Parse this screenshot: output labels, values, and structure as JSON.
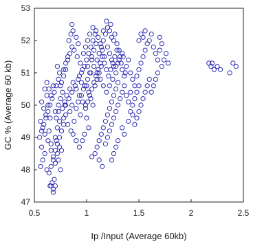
{
  "chart_data": {
    "type": "scatter",
    "title": "",
    "xlabel": "Ip /Input (Average 60kb)",
    "ylabel": "GC % (Average 60 kb)",
    "xlim": [
      0.5,
      2.5
    ],
    "ylim": [
      47,
      53
    ],
    "xticks": [
      0.5,
      1,
      1.5,
      2,
      2.5
    ],
    "xtick_labels": [
      "0.5",
      "1",
      "1.5",
      "2",
      "2.5"
    ],
    "yticks": [
      47,
      48,
      49,
      50,
      51,
      52,
      53
    ],
    "ytick_labels": [
      "47",
      "48",
      "49",
      "50",
      "51",
      "52",
      "53"
    ],
    "grid": false,
    "marker": "open-circle",
    "marker_color": "#2b2bb0",
    "series": [
      {
        "points": [
          [
            0.56,
            48.1
          ],
          [
            0.58,
            48.3
          ],
          [
            0.6,
            48.5
          ],
          [
            0.62,
            48.0
          ],
          [
            0.57,
            48.7
          ],
          [
            0.63,
            48.9
          ],
          [
            0.6,
            49.1
          ],
          [
            0.58,
            49.3
          ],
          [
            0.56,
            49.5
          ],
          [
            0.61,
            49.7
          ],
          [
            0.59,
            49.9
          ],
          [
            0.57,
            50.1
          ],
          [
            0.62,
            50.3
          ],
          [
            0.6,
            50.5
          ],
          [
            0.63,
            50.0
          ],
          [
            0.65,
            49.6
          ],
          [
            0.64,
            49.2
          ],
          [
            0.66,
            48.8
          ],
          [
            0.65,
            47.5
          ],
          [
            0.67,
            47.6
          ],
          [
            0.68,
            47.4
          ],
          [
            0.69,
            47.7
          ],
          [
            0.66,
            47.5
          ],
          [
            0.7,
            47.5
          ],
          [
            0.68,
            47.3
          ],
          [
            0.7,
            48.2
          ],
          [
            0.72,
            48.5
          ],
          [
            0.74,
            48.7
          ],
          [
            0.71,
            48.9
          ],
          [
            0.73,
            48.3
          ],
          [
            0.76,
            48.6
          ],
          [
            0.75,
            48.0
          ],
          [
            0.7,
            49.0
          ],
          [
            0.72,
            49.3
          ],
          [
            0.74,
            49.5
          ],
          [
            0.76,
            49.2
          ],
          [
            0.78,
            49.6
          ],
          [
            0.7,
            49.8
          ],
          [
            0.73,
            50.0
          ],
          [
            0.75,
            50.2
          ],
          [
            0.77,
            50.4
          ],
          [
            0.79,
            50.0
          ],
          [
            0.8,
            49.7
          ],
          [
            0.82,
            49.4
          ],
          [
            0.85,
            49.2
          ],
          [
            0.84,
            49.8
          ],
          [
            0.86,
            50.0
          ],
          [
            0.88,
            49.5
          ],
          [
            0.9,
            49.9
          ],
          [
            0.92,
            50.1
          ],
          [
            0.94,
            49.7
          ],
          [
            0.95,
            50.3
          ],
          [
            0.97,
            50.5
          ],
          [
            0.99,
            50.0
          ],
          [
            1.0,
            49.6
          ],
          [
            1.02,
            49.3
          ],
          [
            0.98,
            49.1
          ],
          [
            0.96,
            48.9
          ],
          [
            0.93,
            48.7
          ],
          [
            0.9,
            48.9
          ],
          [
            0.87,
            49.1
          ],
          [
            0.76,
            50.7
          ],
          [
            0.78,
            50.9
          ],
          [
            0.8,
            51.1
          ],
          [
            0.74,
            51.0
          ],
          [
            0.72,
            51.2
          ],
          [
            0.75,
            50.6
          ],
          [
            0.68,
            50.6
          ],
          [
            0.66,
            50.3
          ],
          [
            0.64,
            50.5
          ],
          [
            0.62,
            50.7
          ],
          [
            0.82,
            51.4
          ],
          [
            0.84,
            51.6
          ],
          [
            0.86,
            51.8
          ],
          [
            0.83,
            52.0
          ],
          [
            0.85,
            52.2
          ],
          [
            0.87,
            52.3
          ],
          [
            0.86,
            52.5
          ],
          [
            0.9,
            52.1
          ],
          [
            0.92,
            51.9
          ],
          [
            0.88,
            51.7
          ],
          [
            0.91,
            51.5
          ],
          [
            0.94,
            51.3
          ],
          [
            0.96,
            51.1
          ],
          [
            0.93,
            50.9
          ],
          [
            0.95,
            50.7
          ],
          [
            0.98,
            51.2
          ],
          [
            1.0,
            51.4
          ],
          [
            1.02,
            51.6
          ],
          [
            1.04,
            51.8
          ],
          [
            1.06,
            52.0
          ],
          [
            1.08,
            52.2
          ],
          [
            1.05,
            51.4
          ],
          [
            1.03,
            51.0
          ],
          [
            1.01,
            50.8
          ],
          [
            1.0,
            50.6
          ],
          [
            1.02,
            50.4
          ],
          [
            1.04,
            50.2
          ],
          [
            1.06,
            50.0
          ],
          [
            1.08,
            50.6
          ],
          [
            1.1,
            50.8
          ],
          [
            1.12,
            51.0
          ],
          [
            1.14,
            51.2
          ],
          [
            1.1,
            51.4
          ],
          [
            1.12,
            51.6
          ],
          [
            1.14,
            51.8
          ],
          [
            1.16,
            52.0
          ],
          [
            1.18,
            52.2
          ],
          [
            1.2,
            52.4
          ],
          [
            1.19,
            52.6
          ],
          [
            1.22,
            52.3
          ],
          [
            1.24,
            52.1
          ],
          [
            1.26,
            52.0
          ],
          [
            1.2,
            51.8
          ],
          [
            1.22,
            51.6
          ],
          [
            1.24,
            51.4
          ],
          [
            1.26,
            51.2
          ],
          [
            1.28,
            51.0
          ],
          [
            1.3,
            51.3
          ],
          [
            1.32,
            51.5
          ],
          [
            1.34,
            51.1
          ],
          [
            1.36,
            50.9
          ],
          [
            1.3,
            50.7
          ],
          [
            1.28,
            50.5
          ],
          [
            1.26,
            50.3
          ],
          [
            1.24,
            50.1
          ],
          [
            1.22,
            49.9
          ],
          [
            1.2,
            49.7
          ],
          [
            1.18,
            49.5
          ],
          [
            1.16,
            49.3
          ],
          [
            1.14,
            49.1
          ],
          [
            1.12,
            48.9
          ],
          [
            1.1,
            48.7
          ],
          [
            1.08,
            48.5
          ],
          [
            1.12,
            48.3
          ],
          [
            1.15,
            48.1
          ],
          [
            1.05,
            48.4
          ],
          [
            1.18,
            48.8
          ],
          [
            1.2,
            49.0
          ],
          [
            1.22,
            49.2
          ],
          [
            1.24,
            49.4
          ],
          [
            1.26,
            49.6
          ],
          [
            1.28,
            49.8
          ],
          [
            1.3,
            50.0
          ],
          [
            1.32,
            50.2
          ],
          [
            1.34,
            50.4
          ],
          [
            1.36,
            50.6
          ],
          [
            1.38,
            50.3
          ],
          [
            1.4,
            50.1
          ],
          [
            1.42,
            50.4
          ],
          [
            1.38,
            51.2
          ],
          [
            1.4,
            51.4
          ],
          [
            1.42,
            51.0
          ],
          [
            1.44,
            50.8
          ],
          [
            1.46,
            50.6
          ],
          [
            1.48,
            50.9
          ],
          [
            1.5,
            51.1
          ],
          [
            1.52,
            51.3
          ],
          [
            1.54,
            51.5
          ],
          [
            1.56,
            51.7
          ],
          [
            1.58,
            51.9
          ],
          [
            1.5,
            52.0
          ],
          [
            1.52,
            52.2
          ],
          [
            1.54,
            52.1
          ],
          [
            1.56,
            52.3
          ],
          [
            1.6,
            52.0
          ],
          [
            1.62,
            52.2
          ],
          [
            1.64,
            51.8
          ],
          [
            1.66,
            51.6
          ],
          [
            1.68,
            51.4
          ],
          [
            1.7,
            51.7
          ],
          [
            1.72,
            51.9
          ],
          [
            1.7,
            52.1
          ],
          [
            1.72,
            51.2
          ],
          [
            1.74,
            51.4
          ],
          [
            1.76,
            51.6
          ],
          [
            1.78,
            51.3
          ],
          [
            1.68,
            51.0
          ],
          [
            1.66,
            50.8
          ],
          [
            1.64,
            50.6
          ],
          [
            1.62,
            50.4
          ],
          [
            1.6,
            50.8
          ],
          [
            1.58,
            50.6
          ],
          [
            1.56,
            50.4
          ],
          [
            1.54,
            50.2
          ],
          [
            1.52,
            50.0
          ],
          [
            1.5,
            49.8
          ],
          [
            1.48,
            49.6
          ],
          [
            1.46,
            49.4
          ],
          [
            1.44,
            49.7
          ],
          [
            1.34,
            49.3
          ],
          [
            1.36,
            49.1
          ],
          [
            1.3,
            48.9
          ],
          [
            1.28,
            48.7
          ],
          [
            1.26,
            48.5
          ],
          [
            1.24,
            48.3
          ],
          [
            0.8,
            50.0
          ],
          [
            0.83,
            50.2
          ],
          [
            0.86,
            50.4
          ],
          [
            0.89,
            50.6
          ],
          [
            0.92,
            50.8
          ],
          [
            0.95,
            51.0
          ],
          [
            0.98,
            50.6
          ],
          [
            1.01,
            51.2
          ],
          [
            1.04,
            51.0
          ],
          [
            1.07,
            51.2
          ],
          [
            1.1,
            51.0
          ],
          [
            1.13,
            50.8
          ],
          [
            1.16,
            50.6
          ],
          [
            1.19,
            50.4
          ],
          [
            1.22,
            50.6
          ],
          [
            1.25,
            50.8
          ],
          [
            1.28,
            51.2
          ],
          [
            1.31,
            51.4
          ],
          [
            1.34,
            51.6
          ],
          [
            1.11,
            52.1
          ],
          [
            1.13,
            51.9
          ],
          [
            1.15,
            51.7
          ],
          [
            1.17,
            51.5
          ],
          [
            1.09,
            51.9
          ],
          [
            1.07,
            51.7
          ],
          [
            1.05,
            51.5
          ],
          [
            0.78,
            51.1
          ],
          [
            0.8,
            51.3
          ],
          [
            0.82,
            51.5
          ],
          [
            0.97,
            51.6
          ],
          [
            0.99,
            51.8
          ],
          [
            1.01,
            52.0
          ],
          [
            1.03,
            52.2
          ],
          [
            1.06,
            52.4
          ],
          [
            1.09,
            52.3
          ],
          [
            1.16,
            52.3
          ],
          [
            1.23,
            52.5
          ],
          [
            1.27,
            52.2
          ],
          [
            1.29,
            51.9
          ],
          [
            1.31,
            51.7
          ],
          [
            1.33,
            51.3
          ],
          [
            1.35,
            51.5
          ],
          [
            1.37,
            51.0
          ],
          [
            0.71,
            49.6
          ],
          [
            0.73,
            49.8
          ],
          [
            0.77,
            49.9
          ],
          [
            0.79,
            50.1
          ],
          [
            0.81,
            50.3
          ],
          [
            0.84,
            50.5
          ],
          [
            0.87,
            50.7
          ],
          [
            0.9,
            50.5
          ],
          [
            0.93,
            50.3
          ],
          [
            0.96,
            50.1
          ],
          [
            0.99,
            49.9
          ],
          [
            1.01,
            50.1
          ],
          [
            1.03,
            50.3
          ],
          [
            1.05,
            50.5
          ],
          [
            1.07,
            50.7
          ],
          [
            1.09,
            50.9
          ],
          [
            1.11,
            51.1
          ],
          [
            1.13,
            51.3
          ],
          [
            1.15,
            51.5
          ],
          [
            1.17,
            51.3
          ],
          [
            1.19,
            51.1
          ],
          [
            1.21,
            50.9
          ],
          [
            1.23,
            51.1
          ],
          [
            1.25,
            51.3
          ],
          [
            1.27,
            51.5
          ],
          [
            1.29,
            51.7
          ],
          [
            2.17,
            51.3
          ],
          [
            2.19,
            51.2
          ],
          [
            2.2,
            51.3
          ],
          [
            2.22,
            51.1
          ],
          [
            2.25,
            51.2
          ],
          [
            2.28,
            51.1
          ],
          [
            2.37,
            51.0
          ],
          [
            2.4,
            51.3
          ],
          [
            2.43,
            51.2
          ],
          [
            0.55,
            49.0
          ],
          [
            0.57,
            49.2
          ],
          [
            0.59,
            49.4
          ],
          [
            0.61,
            49.6
          ],
          [
            0.63,
            49.8
          ],
          [
            0.65,
            50.0
          ],
          [
            0.67,
            50.2
          ],
          [
            0.69,
            50.4
          ],
          [
            0.71,
            50.6
          ],
          [
            0.73,
            50.8
          ],
          [
            0.66,
            48.6
          ],
          [
            0.68,
            48.4
          ],
          [
            0.7,
            48.6
          ],
          [
            0.72,
            48.8
          ],
          [
            0.74,
            49.0
          ],
          [
            0.76,
            49.2
          ],
          [
            0.78,
            49.4
          ],
          [
            0.64,
            47.9
          ],
          [
            0.66,
            48.1
          ],
          [
            0.68,
            48.3
          ],
          [
            1.4,
            49.5
          ],
          [
            1.42,
            49.8
          ],
          [
            1.44,
            50.0
          ],
          [
            1.46,
            50.2
          ],
          [
            1.48,
            50.4
          ],
          [
            1.5,
            50.6
          ]
        ]
      }
    ]
  }
}
